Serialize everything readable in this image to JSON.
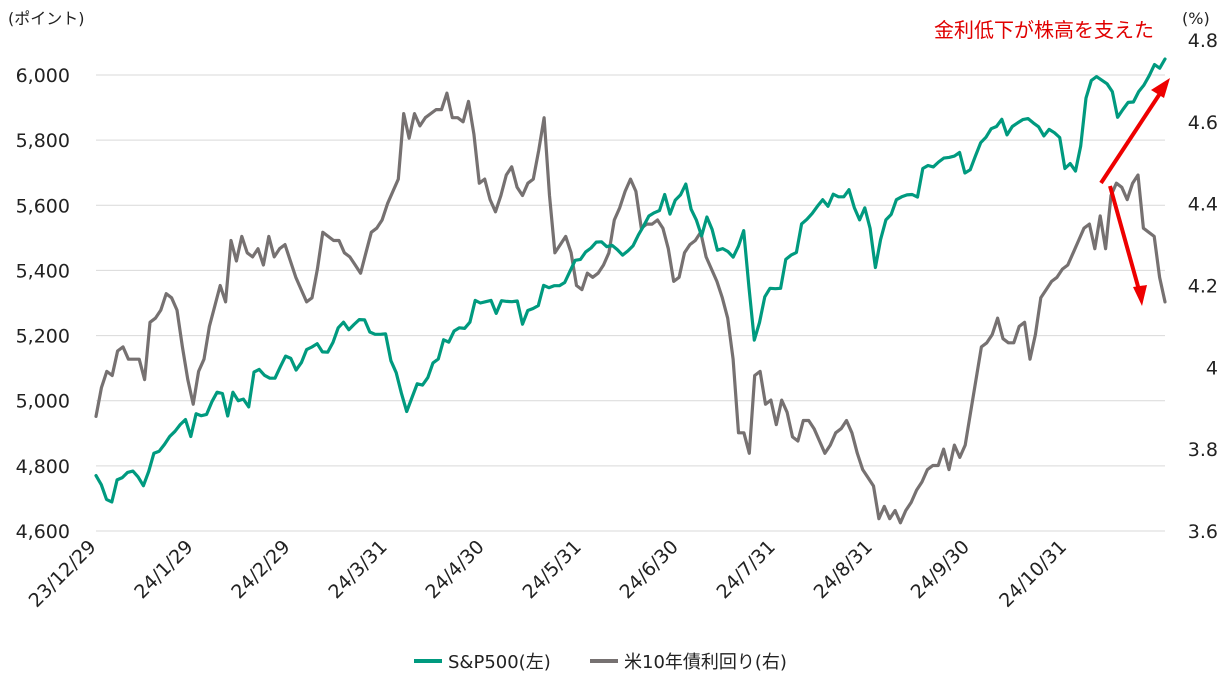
{
  "chart_data": {
    "type": "line",
    "annotation": "金利低下が株高を支えた",
    "y_left_unit": "(ポイント)",
    "y_right_unit": "(%)",
    "x_tick_labels": [
      "23/12/29",
      "24/1/29",
      "24/2/29",
      "24/3/31",
      "24/4/30",
      "24/5/31",
      "24/6/30",
      "24/7/31",
      "24/8/31",
      "24/9/30",
      "24/10/31"
    ],
    "y_left_ticks": [
      "4,600",
      "4,800",
      "5,000",
      "5,200",
      "5,400",
      "5,600",
      "5,800",
      "6,000"
    ],
    "y_right_ticks": [
      "3.6",
      "3.8",
      "4",
      "4.2",
      "4.4",
      "4.6",
      "4.8"
    ],
    "y_left_range": [
      4600,
      6000
    ],
    "y_right_range": [
      3.6,
      4.8
    ],
    "grid": true,
    "legend_position": "bottom",
    "series": [
      {
        "name": "S&P500(左)",
        "axis": "left",
        "color": "#009a7f",
        "values": [
          4770,
          4742,
          4697,
          4689,
          4757,
          4764,
          4780,
          4784,
          4766,
          4739,
          4783,
          4839,
          4845,
          4866,
          4890,
          4906,
          4927,
          4942,
          4890,
          4960,
          4954,
          4958,
          4997,
          5026,
          5022,
          4953,
          5026,
          5000,
          5005,
          4981,
          5088,
          5096,
          5078,
          5069,
          5069,
          5104,
          5137,
          5130,
          5094,
          5117,
          5157,
          5165,
          5175,
          5150,
          5149,
          5179,
          5224,
          5241,
          5218,
          5234,
          5249,
          5248,
          5211,
          5204,
          5204,
          5205,
          5123,
          5086,
          5023,
          4967,
          5010,
          5052,
          5048,
          5071,
          5116,
          5128,
          5187,
          5180,
          5214,
          5224,
          5222,
          5241,
          5308,
          5300,
          5304,
          5308,
          5268,
          5307,
          5305,
          5304,
          5306,
          5235,
          5277,
          5283,
          5292,
          5354,
          5347,
          5353,
          5353,
          5363,
          5397,
          5431,
          5434,
          5457,
          5469,
          5487,
          5488,
          5473,
          5477,
          5464,
          5447,
          5460,
          5476,
          5509,
          5537,
          5567,
          5577,
          5584,
          5633,
          5573,
          5616,
          5632,
          5665,
          5588,
          5555,
          5506,
          5564,
          5526,
          5462,
          5467,
          5458,
          5441,
          5475,
          5522,
          5347,
          5186,
          5240,
          5319,
          5345,
          5344,
          5345,
          5434,
          5447,
          5455,
          5543,
          5557,
          5575,
          5597,
          5617,
          5597,
          5634,
          5626,
          5626,
          5648,
          5593,
          5555,
          5592,
          5529,
          5409,
          5495,
          5555,
          5572,
          5617,
          5626,
          5632,
          5633,
          5625,
          5713,
          5722,
          5718,
          5733,
          5745,
          5747,
          5751,
          5762,
          5699,
          5709,
          5751,
          5792,
          5809,
          5835,
          5842,
          5864,
          5816,
          5842,
          5853,
          5863,
          5866,
          5853,
          5841,
          5813,
          5833,
          5823,
          5808,
          5713,
          5728,
          5705,
          5782,
          5929,
          5983,
          5995,
          5984,
          5973,
          5949,
          5870,
          5894,
          5916,
          5917,
          5949,
          5969,
          5998,
          6032,
          6021,
          6049
        ]
      },
      {
        "name": "米10年債利回り(右)",
        "axis": "right",
        "color": "#767171",
        "values": [
          3.88,
          3.95,
          3.99,
          3.98,
          4.04,
          4.05,
          4.02,
          4.02,
          4.02,
          3.97,
          4.11,
          4.12,
          4.14,
          4.18,
          4.17,
          4.14,
          4.05,
          3.97,
          3.91,
          3.99,
          4.02,
          4.1,
          4.15,
          4.2,
          4.16,
          4.31,
          4.26,
          4.32,
          4.28,
          4.27,
          4.29,
          4.25,
          4.32,
          4.27,
          4.29,
          4.3,
          4.26,
          4.22,
          4.19,
          4.16,
          4.17,
          4.24,
          4.33,
          4.32,
          4.31,
          4.31,
          4.28,
          4.27,
          4.25,
          4.23,
          4.28,
          4.33,
          4.34,
          4.36,
          4.4,
          4.43,
          4.46,
          4.62,
          4.56,
          4.62,
          4.59,
          4.61,
          4.62,
          4.63,
          4.63,
          4.67,
          4.61,
          4.61,
          4.6,
          4.65,
          4.57,
          4.45,
          4.46,
          4.41,
          4.38,
          4.42,
          4.47,
          4.49,
          4.44,
          4.42,
          4.45,
          4.46,
          4.53,
          4.61,
          4.42,
          4.28,
          4.3,
          4.32,
          4.28,
          4.2,
          4.19,
          4.23,
          4.22,
          4.23,
          4.25,
          4.28,
          4.36,
          4.39,
          4.43,
          4.46,
          4.43,
          4.34,
          4.35,
          4.35,
          4.36,
          4.34,
          4.29,
          4.21,
          4.22,
          4.28,
          4.3,
          4.31,
          4.33,
          4.27,
          4.24,
          4.21,
          4.17,
          4.12,
          4.02,
          3.84,
          3.84,
          3.79,
          3.98,
          3.99,
          3.91,
          3.92,
          3.86,
          3.92,
          3.89,
          3.83,
          3.82,
          3.87,
          3.87,
          3.85,
          3.82,
          3.79,
          3.81,
          3.84,
          3.85,
          3.87,
          3.84,
          3.79,
          3.75,
          3.73,
          3.71,
          3.63,
          3.66,
          3.63,
          3.65,
          3.62,
          3.65,
          3.67,
          3.7,
          3.72,
          3.75,
          3.76,
          3.76,
          3.8,
          3.75,
          3.81,
          3.78,
          3.81,
          3.89,
          3.97,
          4.05,
          4.06,
          4.08,
          4.12,
          4.07,
          4.06,
          4.06,
          4.1,
          4.11,
          4.02,
          4.08,
          4.17,
          4.19,
          4.21,
          4.22,
          4.24,
          4.25,
          4.28,
          4.31,
          4.34,
          4.35,
          4.29,
          4.37,
          4.29,
          4.42,
          4.45,
          4.44,
          4.41,
          4.45,
          4.47,
          4.34,
          4.33,
          4.32,
          4.22,
          4.16
        ]
      }
    ]
  }
}
